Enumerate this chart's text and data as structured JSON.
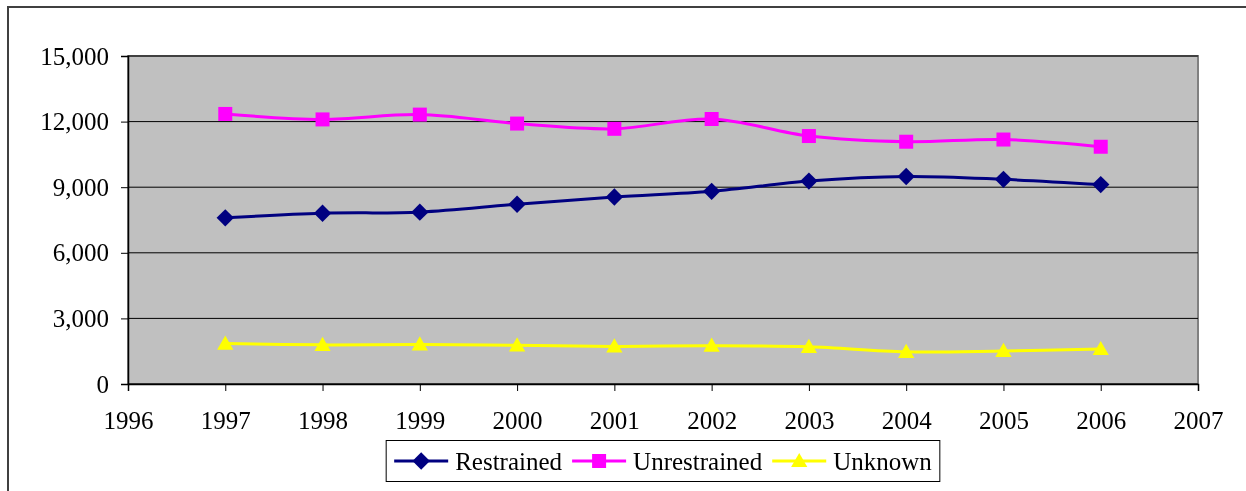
{
  "chart_data": {
    "type": "line",
    "x": [
      1997,
      1998,
      1999,
      2000,
      2001,
      2002,
      2003,
      2004,
      2005,
      2006
    ],
    "series": [
      {
        "name": "Restrained",
        "color": "#000080",
        "marker": "diamond",
        "values": [
          7600,
          7810,
          7860,
          8220,
          8550,
          8810,
          9280,
          9490,
          9360,
          9120
        ]
      },
      {
        "name": "Unrestrained",
        "color": "#ff00ff",
        "marker": "square",
        "values": [
          12350,
          12100,
          12320,
          11910,
          11670,
          12120,
          11340,
          11080,
          11180,
          10850
        ]
      },
      {
        "name": "Unknown",
        "color": "#ffff00",
        "marker": "triangle",
        "values": [
          1850,
          1790,
          1810,
          1770,
          1720,
          1750,
          1700,
          1470,
          1510,
          1600
        ]
      }
    ],
    "xlim": [
      1996,
      2007
    ],
    "xticks": [
      1996,
      1997,
      1998,
      1999,
      2000,
      2001,
      2002,
      2003,
      2004,
      2005,
      2006,
      2007
    ],
    "ylim": [
      0,
      15000
    ],
    "yticks": [
      {
        "value": 0,
        "label": "0"
      },
      {
        "value": 3000,
        "label": "3,000"
      },
      {
        "value": 6000,
        "label": "6,000"
      },
      {
        "value": 9000,
        "label": "9,000"
      },
      {
        "value": 12000,
        "label": "12,000"
      },
      {
        "value": 15000,
        "label": "15,000"
      }
    ],
    "grid": "y",
    "legend": "bottom",
    "line_style": "solid"
  }
}
